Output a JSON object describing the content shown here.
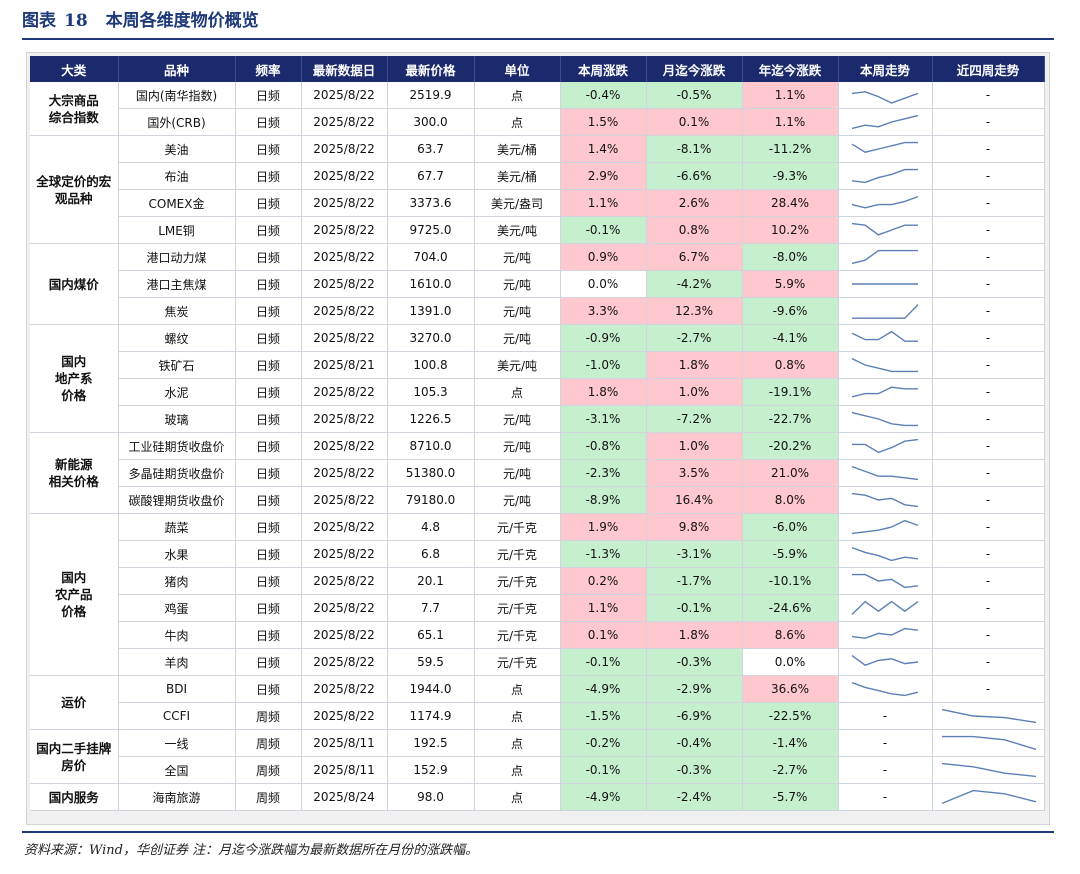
{
  "title": {
    "prefix": "图表",
    "number": "18",
    "text": "本周各维度物价概览"
  },
  "source_note": "资料来源：Wind，华创证券 注：月迄今涨跌幅为最新数据所在月份的涨跌幅。",
  "headers": [
    "大类",
    "品种",
    "频率",
    "最新数据日",
    "最新价格",
    "单位",
    "本周涨跌",
    "月迄今涨跌",
    "年迄今涨跌",
    "本周走势",
    "近四周走势"
  ],
  "colors": {
    "header_bg": "#1a2a6c",
    "positive": "#ffc7ce",
    "negative": "#c6efce",
    "line": "#5b7fb5"
  },
  "groups": [
    {
      "category": [
        "大宗商品",
        "综合指数"
      ],
      "rows": [
        {
          "name": "国内(南华指数)",
          "freq": "日频",
          "date": "2025/8/22",
          "price": "2519.9",
          "unit": "点",
          "week": "-0.4%",
          "month": "-0.5%",
          "ytd": "1.1%",
          "weekly_trend": [
            0.6,
            0.7,
            0.4,
            0.0,
            0.3,
            0.6
          ],
          "four_week": "-"
        },
        {
          "name": "国外(CRB)",
          "freq": "日频",
          "date": "2025/8/22",
          "price": "300.0",
          "unit": "点",
          "week": "1.5%",
          "month": "0.1%",
          "ytd": "1.1%",
          "weekly_trend": [
            0.1,
            0.3,
            0.2,
            0.5,
            0.7,
            0.9
          ],
          "four_week": "-"
        }
      ]
    },
    {
      "category": [
        "全球定价的宏",
        "观品种"
      ],
      "rows": [
        {
          "name": "美油",
          "freq": "日频",
          "date": "2025/8/22",
          "price": "63.7",
          "unit": "美元/桶",
          "week": "1.4%",
          "month": "-8.1%",
          "ytd": "-11.2%",
          "weekly_trend": [
            0.8,
            0.3,
            0.5,
            0.7,
            0.9,
            0.9
          ],
          "four_week": "-"
        },
        {
          "name": "布油",
          "freq": "日频",
          "date": "2025/8/22",
          "price": "67.7",
          "unit": "美元/桶",
          "week": "2.9%",
          "month": "-6.6%",
          "ytd": "-9.3%",
          "weekly_trend": [
            0.2,
            0.1,
            0.4,
            0.6,
            0.9,
            0.9
          ],
          "four_week": "-"
        },
        {
          "name": "COMEX金",
          "freq": "日频",
          "date": "2025/8/22",
          "price": "3373.6",
          "unit": "美元/盎司",
          "week": "1.1%",
          "month": "2.6%",
          "ytd": "28.4%",
          "weekly_trend": [
            0.4,
            0.2,
            0.4,
            0.4,
            0.6,
            0.9
          ],
          "four_week": "-"
        },
        {
          "name": "LME铜",
          "freq": "日频",
          "date": "2025/8/22",
          "price": "9725.0",
          "unit": "美元/吨",
          "week": "-0.1%",
          "month": "0.8%",
          "ytd": "10.2%",
          "weekly_trend": [
            0.9,
            0.8,
            0.2,
            0.5,
            0.8,
            0.8
          ],
          "four_week": "-"
        }
      ]
    },
    {
      "category": [
        "国内煤价"
      ],
      "rows": [
        {
          "name": "港口动力煤",
          "freq": "日频",
          "date": "2025/8/22",
          "price": "704.0",
          "unit": "元/吨",
          "week": "0.9%",
          "month": "6.7%",
          "ytd": "-8.0%",
          "weekly_trend": [
            0.1,
            0.3,
            0.9,
            0.9,
            0.9,
            0.9
          ],
          "four_week": "-"
        },
        {
          "name": "港口主焦煤",
          "freq": "日频",
          "date": "2025/8/22",
          "price": "1610.0",
          "unit": "元/吨",
          "week": "0.0%",
          "month": "-4.2%",
          "ytd": "5.9%",
          "weekly_trend": [
            0.5,
            0.5,
            0.5,
            0.5,
            0.5,
            0.5
          ],
          "four_week": "-"
        },
        {
          "name": "焦炭",
          "freq": "日频",
          "date": "2025/8/22",
          "price": "1391.0",
          "unit": "元/吨",
          "week": "3.3%",
          "month": "12.3%",
          "ytd": "-9.6%",
          "weekly_trend": [
            0.05,
            0.05,
            0.05,
            0.05,
            0.05,
            0.9
          ],
          "four_week": "-"
        }
      ]
    },
    {
      "category": [
        "国内",
        "地产系",
        "价格"
      ],
      "rows": [
        {
          "name": "螺纹",
          "freq": "日频",
          "date": "2025/8/22",
          "price": "3270.0",
          "unit": "元/吨",
          "week": "-0.9%",
          "month": "-2.7%",
          "ytd": "-4.1%",
          "weekly_trend": [
            0.8,
            0.4,
            0.4,
            0.9,
            0.3,
            0.3
          ],
          "four_week": "-"
        },
        {
          "name": "铁矿石",
          "freq": "日频",
          "date": "2025/8/21",
          "price": "100.8",
          "unit": "美元/吨",
          "week": "-1.0%",
          "month": "1.8%",
          "ytd": "0.8%",
          "weekly_trend": [
            0.9,
            0.5,
            0.3,
            0.1,
            0.1,
            0.1
          ],
          "four_week": "-"
        },
        {
          "name": "水泥",
          "freq": "日频",
          "date": "2025/8/22",
          "price": "105.3",
          "unit": "点",
          "week": "1.8%",
          "month": "1.0%",
          "ytd": "-19.1%",
          "weekly_trend": [
            0.2,
            0.4,
            0.4,
            0.8,
            0.7,
            0.7
          ],
          "four_week": "-"
        },
        {
          "name": "玻璃",
          "freq": "日频",
          "date": "2025/8/22",
          "price": "1226.5",
          "unit": "元/吨",
          "week": "-3.1%",
          "month": "-7.2%",
          "ytd": "-22.7%",
          "weekly_trend": [
            0.9,
            0.7,
            0.5,
            0.2,
            0.1,
            0.1
          ],
          "four_week": "-"
        }
      ]
    },
    {
      "category": [
        "新能源",
        "相关价格"
      ],
      "rows": [
        {
          "name": "工业硅期货收盘价",
          "freq": "日频",
          "date": "2025/8/22",
          "price": "8710.0",
          "unit": "元/吨",
          "week": "-0.8%",
          "month": "1.0%",
          "ytd": "-20.2%",
          "weekly_trend": [
            0.6,
            0.6,
            0.1,
            0.4,
            0.8,
            0.9
          ],
          "four_week": "-"
        },
        {
          "name": "多晶硅期货收盘价",
          "freq": "日频",
          "date": "2025/8/22",
          "price": "51380.0",
          "unit": "元/吨",
          "week": "-2.3%",
          "month": "3.5%",
          "ytd": "21.0%",
          "weekly_trend": [
            0.9,
            0.6,
            0.3,
            0.3,
            0.2,
            0.1
          ],
          "four_week": "-"
        },
        {
          "name": "碳酸锂期货收盘价",
          "freq": "日频",
          "date": "2025/8/22",
          "price": "79180.0",
          "unit": "元/吨",
          "week": "-8.9%",
          "month": "16.4%",
          "ytd": "8.0%",
          "weekly_trend": [
            0.9,
            0.8,
            0.5,
            0.6,
            0.2,
            0.1
          ],
          "four_week": "-"
        }
      ]
    },
    {
      "category": [
        "国内",
        "农产品",
        "价格"
      ],
      "rows": [
        {
          "name": "蔬菜",
          "freq": "日频",
          "date": "2025/8/22",
          "price": "4.8",
          "unit": "元/千克",
          "week": "1.9%",
          "month": "9.8%",
          "ytd": "-6.0%",
          "weekly_trend": [
            0.1,
            0.2,
            0.3,
            0.5,
            0.9,
            0.6
          ],
          "four_week": "-"
        },
        {
          "name": "水果",
          "freq": "日频",
          "date": "2025/8/22",
          "price": "6.8",
          "unit": "元/千克",
          "week": "-1.3%",
          "month": "-3.1%",
          "ytd": "-5.9%",
          "weekly_trend": [
            0.9,
            0.6,
            0.4,
            0.1,
            0.3,
            0.2
          ],
          "four_week": "-"
        },
        {
          "name": "猪肉",
          "freq": "日频",
          "date": "2025/8/22",
          "price": "20.1",
          "unit": "元/千克",
          "week": "0.2%",
          "month": "-1.7%",
          "ytd": "-10.1%",
          "weekly_trend": [
            0.9,
            0.9,
            0.5,
            0.6,
            0.1,
            0.2
          ],
          "four_week": "-"
        },
        {
          "name": "鸡蛋",
          "freq": "日频",
          "date": "2025/8/22",
          "price": "7.7",
          "unit": "元/千克",
          "week": "1.1%",
          "month": "-0.1%",
          "ytd": "-24.6%",
          "weekly_trend": [
            0.1,
            0.9,
            0.3,
            0.9,
            0.3,
            0.9
          ],
          "four_week": "-"
        },
        {
          "name": "牛肉",
          "freq": "日频",
          "date": "2025/8/22",
          "price": "65.1",
          "unit": "元/千克",
          "week": "0.1%",
          "month": "1.8%",
          "ytd": "8.6%",
          "weekly_trend": [
            0.4,
            0.3,
            0.6,
            0.5,
            0.9,
            0.8
          ],
          "four_week": "-"
        },
        {
          "name": "羊肉",
          "freq": "日频",
          "date": "2025/8/22",
          "price": "59.5",
          "unit": "元/千克",
          "week": "-0.1%",
          "month": "-0.3%",
          "ytd": "0.0%",
          "weekly_trend": [
            0.9,
            0.3,
            0.6,
            0.7,
            0.4,
            0.5
          ],
          "four_week": "-"
        }
      ]
    },
    {
      "category": [
        "运价"
      ],
      "rows": [
        {
          "name": "BDI",
          "freq": "日频",
          "date": "2025/8/22",
          "price": "1944.0",
          "unit": "点",
          "week": "-4.9%",
          "month": "-2.9%",
          "ytd": "36.6%",
          "weekly_trend": [
            0.9,
            0.6,
            0.4,
            0.2,
            0.1,
            0.3
          ],
          "four_week": "-"
        },
        {
          "name": "CCFI",
          "freq": "周频",
          "date": "2025/8/22",
          "price": "1174.9",
          "unit": "点",
          "week": "-1.5%",
          "month": "-6.9%",
          "ytd": "-22.5%",
          "weekly_trend": "-",
          "four_week": [
            0.9,
            0.5,
            0.4,
            0.1
          ]
        }
      ]
    },
    {
      "category": [
        "国内二手挂牌",
        "房价"
      ],
      "rows": [
        {
          "name": "一线",
          "freq": "周频",
          "date": "2025/8/11",
          "price": "192.5",
          "unit": "点",
          "week": "-0.2%",
          "month": "-0.4%",
          "ytd": "-1.4%",
          "weekly_trend": "-",
          "four_week": [
            0.9,
            0.9,
            0.7,
            0.1
          ]
        },
        {
          "name": "全国",
          "freq": "周频",
          "date": "2025/8/11",
          "price": "152.9",
          "unit": "点",
          "week": "-0.1%",
          "month": "-0.3%",
          "ytd": "-2.7%",
          "weekly_trend": "-",
          "four_week": [
            0.9,
            0.7,
            0.3,
            0.1
          ]
        }
      ]
    },
    {
      "category": [
        "国内服务"
      ],
      "rows": [
        {
          "name": "海南旅游",
          "freq": "周频",
          "date": "2025/8/24",
          "price": "98.0",
          "unit": "点",
          "week": "-4.9%",
          "month": "-2.4%",
          "ytd": "-5.7%",
          "weekly_trend": "-",
          "four_week": [
            0.1,
            0.9,
            0.7,
            0.2
          ]
        }
      ]
    }
  ]
}
